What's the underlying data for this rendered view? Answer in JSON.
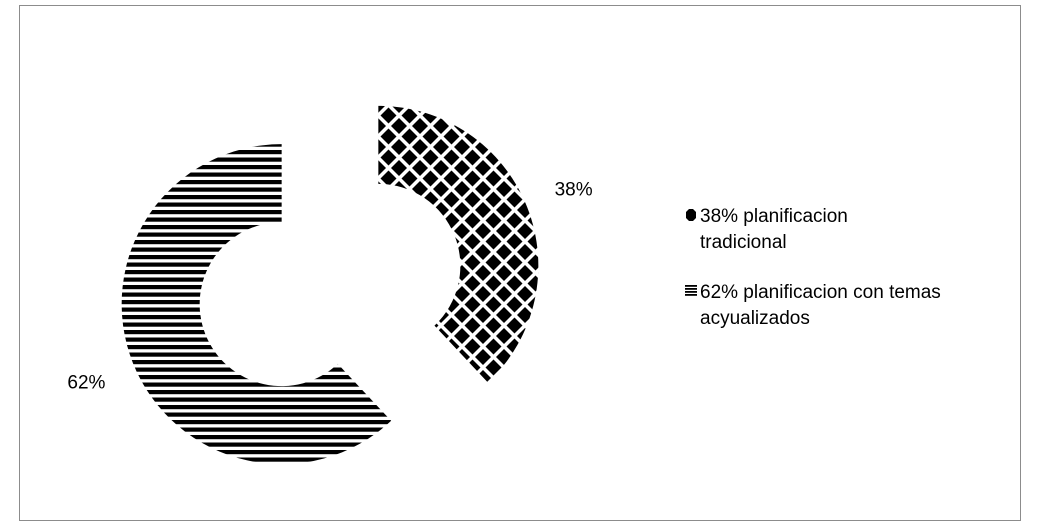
{
  "chart_data": {
    "type": "pie",
    "style": "exploded-donut",
    "legend_placement": "right",
    "slices": [
      {
        "value": 38,
        "data_label": "38%",
        "legend_label": "38%  planificacion tradicional",
        "legend_lines": [
          "38%  planificacion",
          "tradicional"
        ],
        "pattern": "diamond-checker"
      },
      {
        "value": 62,
        "data_label": "62%",
        "legend_label": "62%  planificacion con temas acyualizados",
        "legend_lines": [
          "62%  planificacion con temas",
          "acyualizados"
        ],
        "pattern": "horizontal-stripes"
      }
    ]
  }
}
